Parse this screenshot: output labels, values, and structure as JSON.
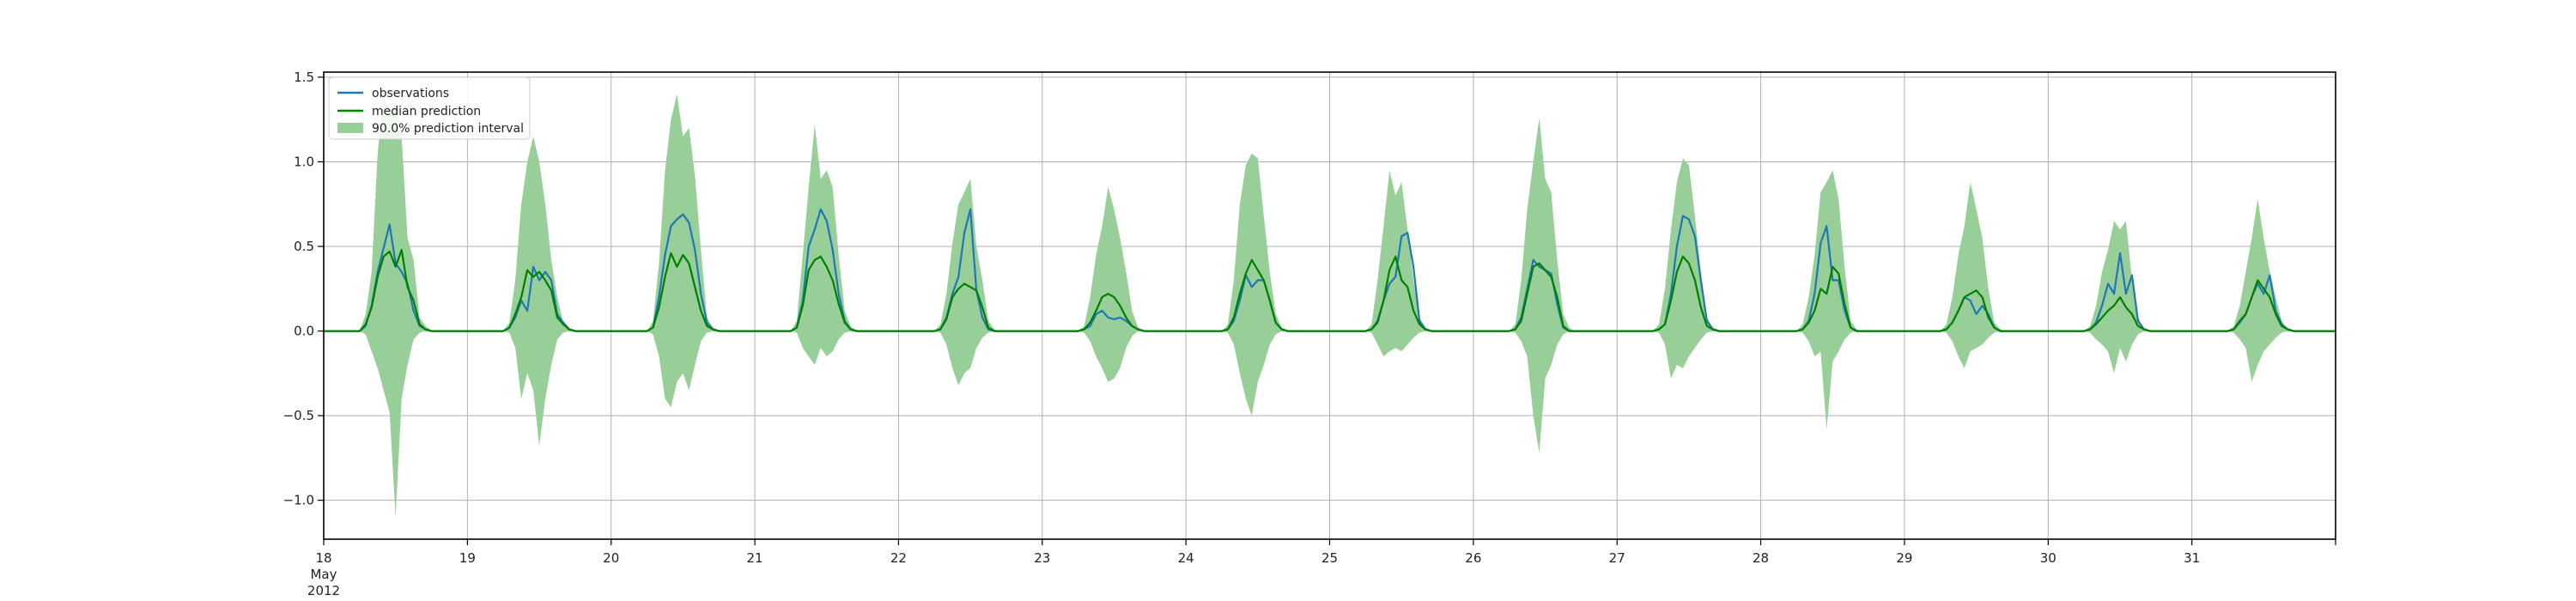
{
  "chart_data": {
    "type": "line",
    "x_axis": {
      "start": "2012-05-18 00:00",
      "end": "2012-06-01 00:00",
      "ticks": [
        {
          "date": "2012-05-18",
          "label": "18",
          "sublabels": [
            "May",
            "2012"
          ]
        },
        {
          "date": "2012-05-19",
          "label": "19"
        },
        {
          "date": "2012-05-20",
          "label": "20"
        },
        {
          "date": "2012-05-21",
          "label": "21"
        },
        {
          "date": "2012-05-22",
          "label": "22"
        },
        {
          "date": "2012-05-23",
          "label": "23"
        },
        {
          "date": "2012-05-24",
          "label": "24"
        },
        {
          "date": "2012-05-25",
          "label": "25"
        },
        {
          "date": "2012-05-26",
          "label": "26"
        },
        {
          "date": "2012-05-27",
          "label": "27"
        },
        {
          "date": "2012-05-28",
          "label": "28"
        },
        {
          "date": "2012-05-29",
          "label": "29"
        },
        {
          "date": "2012-05-30",
          "label": "30"
        },
        {
          "date": "2012-05-31",
          "label": "31"
        }
      ]
    },
    "y_axis": {
      "ylim": [
        -1.23,
        1.53
      ],
      "ticks": [
        {
          "value": -1.0,
          "label": "−1.0"
        },
        {
          "value": -0.5,
          "label": "−0.5"
        },
        {
          "value": 0.0,
          "label": "0.0"
        },
        {
          "value": 0.5,
          "label": "0.5"
        },
        {
          "value": 1.0,
          "label": "1.0"
        },
        {
          "value": 1.5,
          "label": "1.5"
        }
      ]
    },
    "grid": true,
    "legend": {
      "placement": "top-left",
      "entries": [
        "observations",
        "median prediction",
        "90.0% prediction interval"
      ]
    },
    "colors": {
      "observations": "#1f77b4",
      "median": "#008000",
      "interval": "#98cf98",
      "grid": "#b0b0b0"
    },
    "daily_profile_hours": [
      7,
      8,
      9,
      10,
      11,
      12,
      13,
      14,
      15,
      16,
      17,
      18,
      19
    ],
    "days": [
      {
        "date": "2012-05-18",
        "observations": [
          0.03,
          0.15,
          0.35,
          0.49,
          0.63,
          0.4,
          0.35,
          0.28,
          0.12,
          0.03,
          0.01,
          0,
          0
        ],
        "median": [
          0.04,
          0.14,
          0.32,
          0.44,
          0.47,
          0.38,
          0.48,
          0.26,
          0.18,
          0.04,
          0.01,
          0,
          0
        ],
        "upper": [
          0.1,
          0.35,
          1.05,
          1.4,
          1.28,
          1.35,
          1.15,
          0.55,
          0.42,
          0.08,
          0.03,
          0,
          0
        ],
        "lower": [
          -0.02,
          -0.12,
          -0.22,
          -0.35,
          -0.48,
          -1.1,
          -0.4,
          -0.2,
          -0.05,
          -0.01,
          0,
          0,
          0
        ]
      },
      {
        "date": "2012-05-19",
        "observations": [
          0.02,
          0.08,
          0.18,
          0.12,
          0.38,
          0.3,
          0.35,
          0.3,
          0.1,
          0.05,
          0.01,
          0,
          0
        ],
        "median": [
          0.02,
          0.1,
          0.2,
          0.36,
          0.32,
          0.35,
          0.3,
          0.24,
          0.08,
          0.04,
          0.01,
          0,
          0
        ],
        "upper": [
          0.05,
          0.3,
          0.75,
          1.0,
          1.15,
          1.0,
          0.75,
          0.42,
          0.2,
          0.05,
          0.01,
          0,
          0
        ],
        "lower": [
          -0.01,
          -0.1,
          -0.4,
          -0.25,
          -0.35,
          -0.68,
          -0.4,
          -0.2,
          -0.05,
          -0.01,
          0,
          0,
          0
        ]
      },
      {
        "date": "2012-05-20",
        "observations": [
          0.02,
          0.2,
          0.45,
          0.62,
          0.66,
          0.69,
          0.64,
          0.48,
          0.22,
          0.05,
          0.01,
          0,
          0
        ],
        "median": [
          0.02,
          0.14,
          0.32,
          0.46,
          0.38,
          0.45,
          0.4,
          0.26,
          0.12,
          0.03,
          0.01,
          0,
          0
        ],
        "upper": [
          0.06,
          0.4,
          0.95,
          1.25,
          1.4,
          1.15,
          1.2,
          0.92,
          0.48,
          0.08,
          0.02,
          0,
          0
        ],
        "lower": [
          -0.02,
          -0.15,
          -0.4,
          -0.45,
          -0.3,
          -0.25,
          -0.35,
          -0.2,
          -0.06,
          -0.01,
          0,
          0,
          0
        ]
      },
      {
        "date": "2012-05-21",
        "observations": [
          0.02,
          0.18,
          0.5,
          0.6,
          0.72,
          0.65,
          0.48,
          0.22,
          0.06,
          0.01,
          0,
          0,
          0
        ],
        "median": [
          0.02,
          0.15,
          0.36,
          0.42,
          0.44,
          0.38,
          0.3,
          0.16,
          0.05,
          0.01,
          0,
          0,
          0
        ],
        "upper": [
          0.06,
          0.45,
          0.85,
          1.22,
          0.9,
          0.95,
          0.85,
          0.45,
          0.12,
          0.03,
          0,
          0,
          0
        ],
        "lower": [
          -0.01,
          -0.1,
          -0.15,
          -0.2,
          -0.1,
          -0.15,
          -0.12,
          -0.05,
          -0.01,
          0,
          0,
          0,
          0
        ]
      },
      {
        "date": "2012-05-22",
        "observations": [
          0.01,
          0.08,
          0.22,
          0.32,
          0.58,
          0.72,
          0.24,
          0.08,
          0.01,
          0,
          0,
          0,
          0
        ],
        "median": [
          0.01,
          0.07,
          0.2,
          0.25,
          0.28,
          0.26,
          0.24,
          0.14,
          0.02,
          0,
          0,
          0,
          0
        ],
        "upper": [
          0.04,
          0.22,
          0.52,
          0.75,
          0.82,
          0.9,
          0.5,
          0.3,
          0.06,
          0.01,
          0,
          0,
          0
        ],
        "lower": [
          -0.01,
          -0.08,
          -0.22,
          -0.32,
          -0.25,
          -0.22,
          -0.1,
          -0.04,
          -0.01,
          0,
          0,
          0,
          0
        ]
      },
      {
        "date": "2012-05-23",
        "observations": [
          0.01,
          0.03,
          0.1,
          0.12,
          0.08,
          0.07,
          0.08,
          0.06,
          0.03,
          0.01,
          0,
          0,
          0
        ],
        "median": [
          0.01,
          0.05,
          0.12,
          0.2,
          0.22,
          0.2,
          0.15,
          0.08,
          0.03,
          0.01,
          0,
          0,
          0
        ],
        "upper": [
          0.03,
          0.2,
          0.45,
          0.62,
          0.85,
          0.72,
          0.55,
          0.35,
          0.12,
          0.02,
          0,
          0,
          0
        ],
        "lower": [
          -0.01,
          -0.06,
          -0.15,
          -0.22,
          -0.3,
          -0.28,
          -0.22,
          -0.1,
          -0.03,
          0,
          0,
          0,
          0
        ]
      },
      {
        "date": "2012-05-24",
        "observations": [
          0.01,
          0.06,
          0.18,
          0.33,
          0.26,
          0.3,
          0.3,
          0.18,
          0.05,
          0.01,
          0,
          0,
          0
        ],
        "median": [
          0.01,
          0.08,
          0.22,
          0.34,
          0.42,
          0.36,
          0.3,
          0.18,
          0.05,
          0.01,
          0,
          0,
          0
        ],
        "upper": [
          0.04,
          0.3,
          0.75,
          0.98,
          1.05,
          1.02,
          0.68,
          0.35,
          0.1,
          0.02,
          0,
          0,
          0
        ],
        "lower": [
          -0.01,
          -0.08,
          -0.25,
          -0.4,
          -0.5,
          -0.3,
          -0.2,
          -0.08,
          -0.02,
          0,
          0,
          0,
          0
        ]
      },
      {
        "date": "2012-05-25",
        "observations": [
          0.01,
          0.06,
          0.18,
          0.28,
          0.32,
          0.56,
          0.58,
          0.38,
          0.06,
          0.01,
          0,
          0,
          0
        ],
        "median": [
          0.01,
          0.05,
          0.18,
          0.36,
          0.44,
          0.3,
          0.26,
          0.12,
          0.04,
          0.01,
          0,
          0,
          0
        ],
        "upper": [
          0.04,
          0.3,
          0.62,
          0.95,
          0.8,
          0.88,
          0.6,
          0.3,
          0.08,
          0.02,
          0,
          0,
          0
        ],
        "lower": [
          -0.01,
          -0.08,
          -0.15,
          -0.12,
          -0.1,
          -0.12,
          -0.08,
          -0.04,
          -0.01,
          0,
          0,
          0,
          0
        ]
      },
      {
        "date": "2012-05-26",
        "observations": [
          0.01,
          0.08,
          0.25,
          0.42,
          0.38,
          0.36,
          0.34,
          0.16,
          0.02,
          0,
          0,
          0,
          0
        ],
        "median": [
          0.01,
          0.06,
          0.22,
          0.38,
          0.4,
          0.36,
          0.32,
          0.2,
          0.03,
          0,
          0,
          0,
          0
        ],
        "upper": [
          0.04,
          0.3,
          0.72,
          1.0,
          1.26,
          0.9,
          0.82,
          0.42,
          0.1,
          0.02,
          0,
          0,
          0
        ],
        "lower": [
          -0.01,
          -0.06,
          -0.15,
          -0.5,
          -0.72,
          -0.28,
          -0.2,
          -0.08,
          -0.02,
          0,
          0,
          0,
          0
        ]
      },
      {
        "date": "2012-05-27",
        "observations": [
          0.01,
          0.04,
          0.22,
          0.5,
          0.68,
          0.66,
          0.56,
          0.3,
          0.06,
          0.01,
          0,
          0,
          0
        ],
        "median": [
          0.01,
          0.04,
          0.18,
          0.35,
          0.44,
          0.4,
          0.3,
          0.14,
          0.03,
          0.01,
          0,
          0,
          0
        ],
        "upper": [
          0.04,
          0.25,
          0.6,
          0.88,
          1.02,
          0.98,
          0.68,
          0.35,
          0.08,
          0.02,
          0,
          0,
          0
        ],
        "lower": [
          -0.01,
          -0.08,
          -0.28,
          -0.2,
          -0.22,
          -0.15,
          -0.1,
          -0.05,
          -0.01,
          0,
          0,
          0,
          0
        ]
      },
      {
        "date": "2012-05-28",
        "observations": [
          0.01,
          0.06,
          0.22,
          0.52,
          0.62,
          0.3,
          0.3,
          0.12,
          0.02,
          0,
          0,
          0,
          0
        ],
        "median": [
          0.01,
          0.05,
          0.12,
          0.25,
          0.22,
          0.38,
          0.34,
          0.16,
          0.02,
          0,
          0,
          0,
          0
        ],
        "upper": [
          0.04,
          0.2,
          0.45,
          0.82,
          0.88,
          0.95,
          0.78,
          0.38,
          0.06,
          0.01,
          0,
          0,
          0
        ],
        "lower": [
          -0.01,
          -0.06,
          -0.15,
          -0.12,
          -0.58,
          -0.18,
          -0.12,
          -0.05,
          -0.01,
          0,
          0,
          0,
          0
        ]
      },
      {
        "date": "2012-05-29",
        "observations": [
          0.01,
          0.05,
          0.12,
          0.2,
          0.18,
          0.1,
          0.15,
          0.1,
          0.02,
          0,
          0,
          0,
          0
        ],
        "median": [
          0.01,
          0.05,
          0.12,
          0.2,
          0.22,
          0.24,
          0.2,
          0.08,
          0.02,
          0,
          0,
          0,
          0
        ],
        "upper": [
          0.04,
          0.2,
          0.45,
          0.62,
          0.88,
          0.72,
          0.55,
          0.25,
          0.05,
          0.01,
          0,
          0,
          0
        ],
        "lower": [
          -0.01,
          -0.06,
          -0.15,
          -0.22,
          -0.12,
          -0.1,
          -0.08,
          -0.04,
          -0.01,
          0,
          0,
          0,
          0
        ]
      },
      {
        "date": "2012-05-30",
        "observations": [
          0.01,
          0.05,
          0.15,
          0.28,
          0.22,
          0.46,
          0.22,
          0.33,
          0.06,
          0.01,
          0,
          0,
          0
        ],
        "median": [
          0.01,
          0.04,
          0.08,
          0.12,
          0.15,
          0.2,
          0.14,
          0.1,
          0.03,
          0.01,
          0,
          0,
          0
        ],
        "upper": [
          0.03,
          0.15,
          0.35,
          0.48,
          0.65,
          0.6,
          0.65,
          0.3,
          0.08,
          0.01,
          0,
          0,
          0
        ],
        "lower": [
          -0.01,
          -0.05,
          -0.08,
          -0.12,
          -0.25,
          -0.1,
          -0.18,
          -0.08,
          -0.02,
          0,
          0,
          0,
          0
        ]
      },
      {
        "date": "2012-05-31",
        "observations": [
          0.01,
          0.05,
          0.1,
          0.2,
          0.28,
          0.22,
          0.33,
          0.12,
          0.04,
          0.01,
          0,
          0,
          0
        ],
        "median": [
          0.01,
          0.06,
          0.1,
          0.2,
          0.3,
          0.25,
          0.2,
          0.1,
          0.03,
          0.01,
          0,
          0,
          0
        ],
        "upper": [
          0.03,
          0.15,
          0.35,
          0.55,
          0.78,
          0.55,
          0.35,
          0.2,
          0.06,
          0.01,
          0,
          0,
          0
        ],
        "lower": [
          -0.01,
          -0.05,
          -0.1,
          -0.3,
          -0.2,
          -0.12,
          -0.08,
          -0.04,
          -0.01,
          0,
          0,
          0,
          0
        ]
      }
    ]
  }
}
